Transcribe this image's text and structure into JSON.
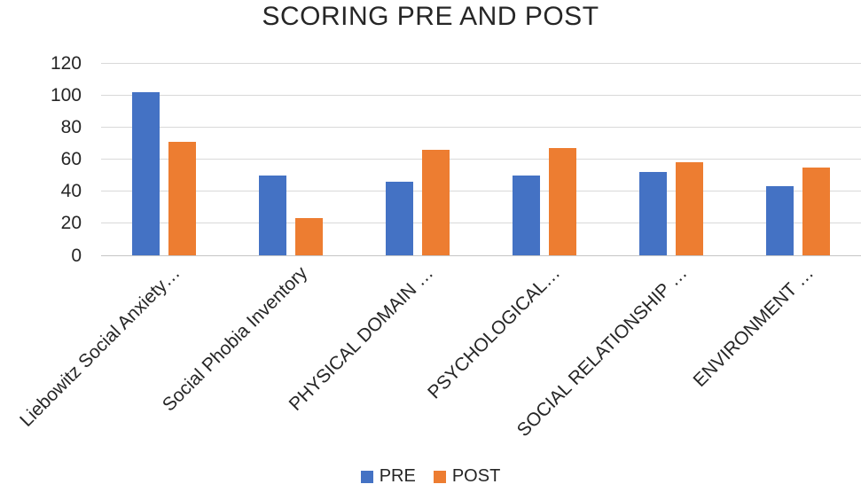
{
  "chart_data": {
    "type": "bar",
    "title": "SCORING PRE AND POST",
    "categories": [
      "Liebowitz Social Anxiety…",
      "Social Phobia Inventory",
      "PHYSICAL DOMAIN …",
      "PSYCHOLOGICAL…",
      "SOCIAL RELATIONSHIP …",
      "ENVIRONMENT …"
    ],
    "series": [
      {
        "name": "PRE",
        "color": "#4472C4",
        "values": [
          102,
          50,
          46,
          50,
          52,
          43
        ]
      },
      {
        "name": "POST",
        "color": "#ED7D31",
        "values": [
          71,
          23,
          66,
          67,
          58,
          55
        ]
      }
    ],
    "ylim": [
      0,
      120
    ],
    "yticks": [
      0,
      20,
      40,
      60,
      80,
      100,
      120
    ],
    "grid": true,
    "legend_position": "bottom",
    "xlabel": "",
    "ylabel": ""
  },
  "colors": {
    "pre": "#4472C4",
    "post": "#ED7D31",
    "gridline": "#D9D9D9",
    "text": "#262626",
    "background": "#FFFFFF"
  }
}
